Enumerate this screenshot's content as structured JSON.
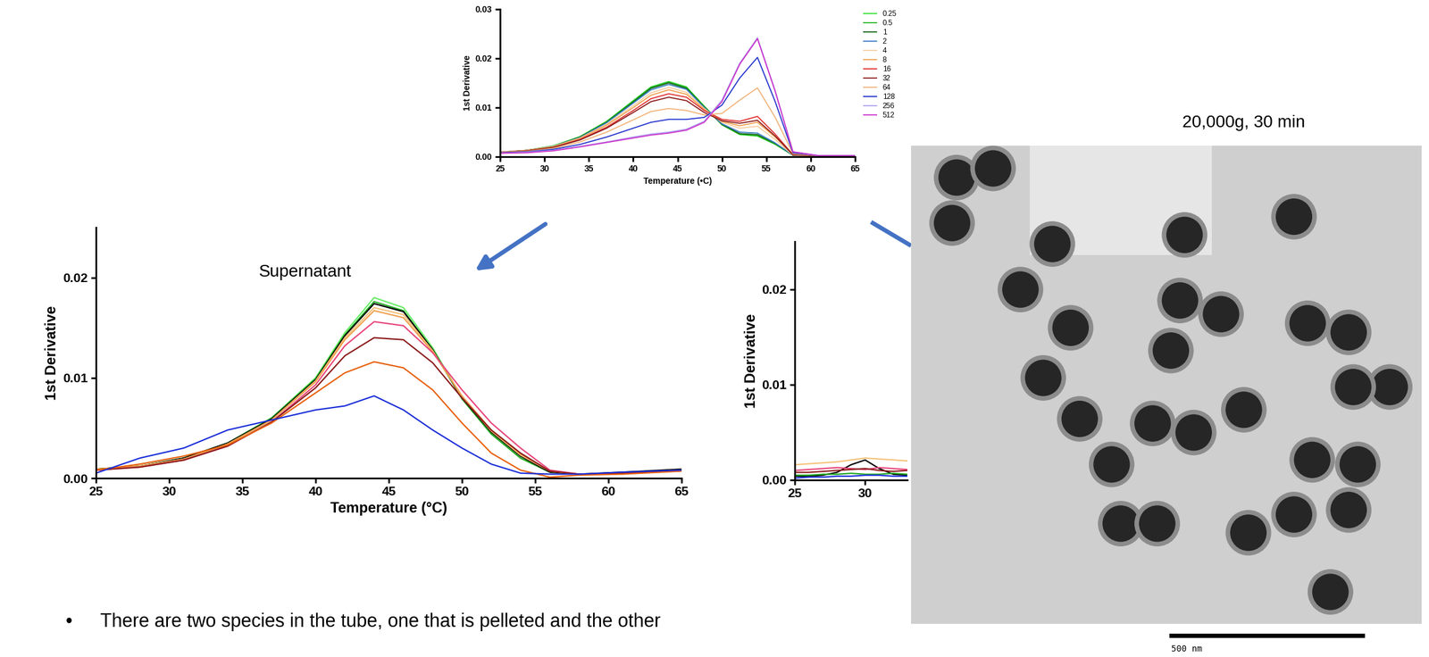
{
  "chart_data": [
    {
      "type": "line",
      "xlabel": "Temperature (•C)",
      "ylabel": "1st Derivative",
      "x": [
        25,
        28,
        31,
        34,
        37,
        40,
        42,
        44,
        46,
        48,
        50,
        52,
        54,
        56,
        58,
        61,
        65
      ],
      "xlim": [
        25,
        65
      ],
      "xticks": [
        25,
        30,
        35,
        40,
        45,
        50,
        55,
        60,
        65
      ],
      "ylim": [
        0,
        0.03
      ],
      "yticks": [
        {
          "value": 0,
          "label": "0.00"
        },
        {
          "value": 0.01,
          "label": "0.01"
        },
        {
          "value": 0.02,
          "label": "0.02"
        },
        {
          "value": 0.03,
          "label": "0.03"
        }
      ],
      "legend": "upper left",
      "series": [
        {
          "name": "0.25",
          "color": "#33e033",
          "values": [
            0.0009,
            0.0013,
            0.0022,
            0.0041,
            0.0072,
            0.0114,
            0.0142,
            0.0153,
            0.0142,
            0.0103,
            0.0065,
            0.0045,
            0.0042,
            0.0025,
            0.0003,
            0.0002,
            0.0002
          ]
        },
        {
          "name": "0.5",
          "color": "#1fb41f",
          "values": [
            0.0009,
            0.0013,
            0.0022,
            0.004,
            0.0071,
            0.0113,
            0.0141,
            0.0152,
            0.0141,
            0.0102,
            0.0065,
            0.0046,
            0.0043,
            0.0026,
            0.0003,
            0.0002,
            0.0002
          ]
        },
        {
          "name": "1",
          "color": "#146614",
          "values": [
            0.0009,
            0.0013,
            0.0021,
            0.004,
            0.007,
            0.0111,
            0.0139,
            0.015,
            0.0139,
            0.0101,
            0.0066,
            0.0047,
            0.0045,
            0.0027,
            0.0003,
            0.0002,
            0.0002
          ]
        },
        {
          "name": "2",
          "color": "#3a7fc8",
          "values": [
            0.0009,
            0.0013,
            0.0021,
            0.0039,
            0.0069,
            0.0109,
            0.0136,
            0.0147,
            0.0137,
            0.01,
            0.0067,
            0.005,
            0.0048,
            0.0028,
            0.0003,
            0.0002,
            0.0002
          ]
        },
        {
          "name": "4",
          "color": "#f6cfa0",
          "values": [
            0.0009,
            0.0013,
            0.0021,
            0.0038,
            0.0066,
            0.0104,
            0.013,
            0.0141,
            0.0131,
            0.0098,
            0.007,
            0.0058,
            0.0062,
            0.0035,
            0.0003,
            0.0002,
            0.0002
          ]
        },
        {
          "name": "8",
          "color": "#f0a050",
          "values": [
            0.0009,
            0.0013,
            0.002,
            0.0037,
            0.0064,
            0.01,
            0.0125,
            0.0136,
            0.0127,
            0.0096,
            0.0072,
            0.0063,
            0.007,
            0.004,
            0.0004,
            0.0002,
            0.0002
          ]
        },
        {
          "name": "16",
          "color": "#e03030",
          "values": [
            0.0009,
            0.0012,
            0.0019,
            0.0035,
            0.006,
            0.0094,
            0.0118,
            0.0128,
            0.0121,
            0.0094,
            0.0076,
            0.0072,
            0.0082,
            0.0046,
            0.0004,
            0.0002,
            0.0002
          ]
        },
        {
          "name": "32",
          "color": "#8b1a1a",
          "values": [
            0.0009,
            0.0012,
            0.0019,
            0.0034,
            0.0058,
            0.009,
            0.0112,
            0.0121,
            0.0114,
            0.009,
            0.0073,
            0.0068,
            0.0074,
            0.0042,
            0.0004,
            0.0002,
            0.0002
          ]
        },
        {
          "name": "64",
          "color": "#f2b37a",
          "values": [
            0.0009,
            0.0011,
            0.0017,
            0.003,
            0.005,
            0.0075,
            0.0092,
            0.0098,
            0.0094,
            0.0085,
            0.0088,
            0.0115,
            0.014,
            0.008,
            0.0006,
            0.0002,
            0.0002
          ]
        },
        {
          "name": "128",
          "color": "#2233cc",
          "values": [
            0.0008,
            0.001,
            0.0015,
            0.0025,
            0.004,
            0.0058,
            0.007,
            0.0076,
            0.0076,
            0.008,
            0.0105,
            0.016,
            0.0202,
            0.0112,
            0.0008,
            0.0002,
            0.0002
          ]
        },
        {
          "name": "256",
          "color": "#b0a0ee",
          "values": [
            0.0007,
            0.0009,
            0.0013,
            0.0021,
            0.003,
            0.004,
            0.0046,
            0.005,
            0.0056,
            0.0072,
            0.0115,
            0.019,
            0.0242,
            0.0134,
            0.001,
            0.0002,
            0.0002
          ]
        },
        {
          "name": "512",
          "color": "#cc33cc",
          "values": [
            0.0007,
            0.0008,
            0.0012,
            0.002,
            0.0029,
            0.0038,
            0.0044,
            0.0048,
            0.0054,
            0.007,
            0.0112,
            0.0188,
            0.024,
            0.0133,
            0.001,
            0.0002,
            0.0002
          ]
        }
      ]
    },
    {
      "type": "line",
      "title": "Supernatant",
      "xlabel": "Temperature (°C)",
      "ylabel": "1st Derivative",
      "x": [
        25,
        28,
        31,
        34,
        37,
        40,
        42,
        44,
        46,
        48,
        50,
        52,
        54,
        56,
        58,
        61,
        65
      ],
      "xlim": [
        25,
        65
      ],
      "xticks": [
        25,
        30,
        35,
        40,
        45,
        50,
        55,
        60,
        65
      ],
      "ylim": [
        0,
        0.025
      ],
      "yticks": [
        {
          "value": 0,
          "label": "0.00"
        },
        {
          "value": 0.01,
          "label": "0.01"
        },
        {
          "value": 0.02,
          "label": "0.02"
        }
      ],
      "series": [
        {
          "color": "#66ee66",
          "values": [
            0.0009,
            0.0012,
            0.002,
            0.0035,
            0.006,
            0.01,
            0.0145,
            0.018,
            0.017,
            0.013,
            0.008,
            0.0045,
            0.002,
            0.0006,
            0.0004,
            0.0005,
            0.0008
          ]
        },
        {
          "color": "#22aa22",
          "values": [
            0.0009,
            0.0012,
            0.002,
            0.0035,
            0.006,
            0.0099,
            0.0143,
            0.0176,
            0.0167,
            0.0128,
            0.0079,
            0.0044,
            0.002,
            0.0006,
            0.0004,
            0.0005,
            0.0008
          ]
        },
        {
          "color": "#000000",
          "values": [
            0.0009,
            0.0012,
            0.002,
            0.0035,
            0.0059,
            0.0098,
            0.0142,
            0.0174,
            0.0166,
            0.0128,
            0.008,
            0.0046,
            0.0022,
            0.0006,
            0.0004,
            0.0006,
            0.0009
          ]
        },
        {
          "color": "#f5c27a",
          "values": [
            0.0008,
            0.0012,
            0.0019,
            0.0034,
            0.0058,
            0.0097,
            0.014,
            0.017,
            0.0163,
            0.0127,
            0.0081,
            0.0047,
            0.0023,
            0.0007,
            0.0004,
            0.0005,
            0.0008
          ]
        },
        {
          "color": "#f0a050",
          "values": [
            0.0009,
            0.0012,
            0.0019,
            0.0034,
            0.0058,
            0.0096,
            0.0138,
            0.0167,
            0.016,
            0.0126,
            0.0082,
            0.0048,
            0.0024,
            0.0007,
            0.0004,
            0.0005,
            0.0008
          ]
        },
        {
          "color": "#e8457a",
          "values": [
            0.0008,
            0.0011,
            0.0018,
            0.0032,
            0.0056,
            0.0093,
            0.0132,
            0.0156,
            0.0152,
            0.0125,
            0.0088,
            0.0055,
            0.003,
            0.0008,
            0.0004,
            0.0005,
            0.0008
          ]
        },
        {
          "color": "#8b1a1a",
          "values": [
            0.0008,
            0.0011,
            0.0018,
            0.0032,
            0.0056,
            0.009,
            0.0122,
            0.014,
            0.0138,
            0.0115,
            0.008,
            0.0048,
            0.0025,
            0.0007,
            0.0004,
            0.0005,
            0.0008
          ]
        },
        {
          "color": "#e8600c",
          "values": [
            0.0008,
            0.0014,
            0.0022,
            0.0033,
            0.0055,
            0.0085,
            0.0105,
            0.0116,
            0.011,
            0.0088,
            0.0055,
            0.0025,
            0.0008,
            0.0001,
            0.0003,
            0.0004,
            0.0007
          ]
        },
        {
          "color": "#1a2ed8",
          "values": [
            0.0005,
            0.002,
            0.003,
            0.0048,
            0.0058,
            0.0068,
            0.0072,
            0.0082,
            0.0068,
            0.0048,
            0.003,
            0.0014,
            0.0005,
            0.0004,
            0.0004,
            0.0006,
            0.0008
          ]
        }
      ]
    },
    {
      "type": "line",
      "ylabel": "1st Derivative",
      "x": [
        25,
        26,
        27,
        28,
        29,
        30,
        31,
        32,
        33
      ],
      "xlim": [
        25,
        33
      ],
      "xticks": [
        25,
        30
      ],
      "ylim": [
        0,
        0.025
      ],
      "yticks": [
        {
          "value": 0,
          "label": "0.00"
        },
        {
          "value": 0.01,
          "label": "0.01"
        },
        {
          "value": 0.02,
          "label": "0.02"
        }
      ],
      "series": [
        {
          "color": "#f5c27a",
          "values": [
            0.0016,
            0.0017,
            0.0018,
            0.0019,
            0.0021,
            0.0023,
            0.0022,
            0.0021,
            0.002
          ]
        },
        {
          "color": "#000000",
          "values": [
            0.0004,
            0.0004,
            0.0005,
            0.0008,
            0.0016,
            0.0021,
            0.0012,
            0.0006,
            0.0005
          ]
        },
        {
          "color": "#e8457a",
          "values": [
            0.001,
            0.0011,
            0.0012,
            0.0013,
            0.0012,
            0.0011,
            0.0013,
            0.0012,
            0.0011
          ]
        },
        {
          "color": "#22aa22",
          "values": [
            0.0005,
            0.0005,
            0.0006,
            0.0006,
            0.0007,
            0.0006,
            0.0006,
            0.0007,
            0.0006
          ]
        },
        {
          "color": "#1a2ed8",
          "values": [
            0.0002,
            0.0003,
            0.0003,
            0.0004,
            0.0004,
            0.0005,
            0.0005,
            0.0004,
            0.0004
          ]
        },
        {
          "color": "#8b1a1a",
          "values": [
            0.0008,
            0.0008,
            0.0009,
            0.001,
            0.0011,
            0.0012,
            0.001,
            0.0009,
            0.001
          ]
        }
      ]
    }
  ],
  "image": {
    "title": "20,000g, 30 min",
    "scale_bar": "500 nm"
  },
  "bullet": "There are two species in the tube, one that is pelleted and the other"
}
